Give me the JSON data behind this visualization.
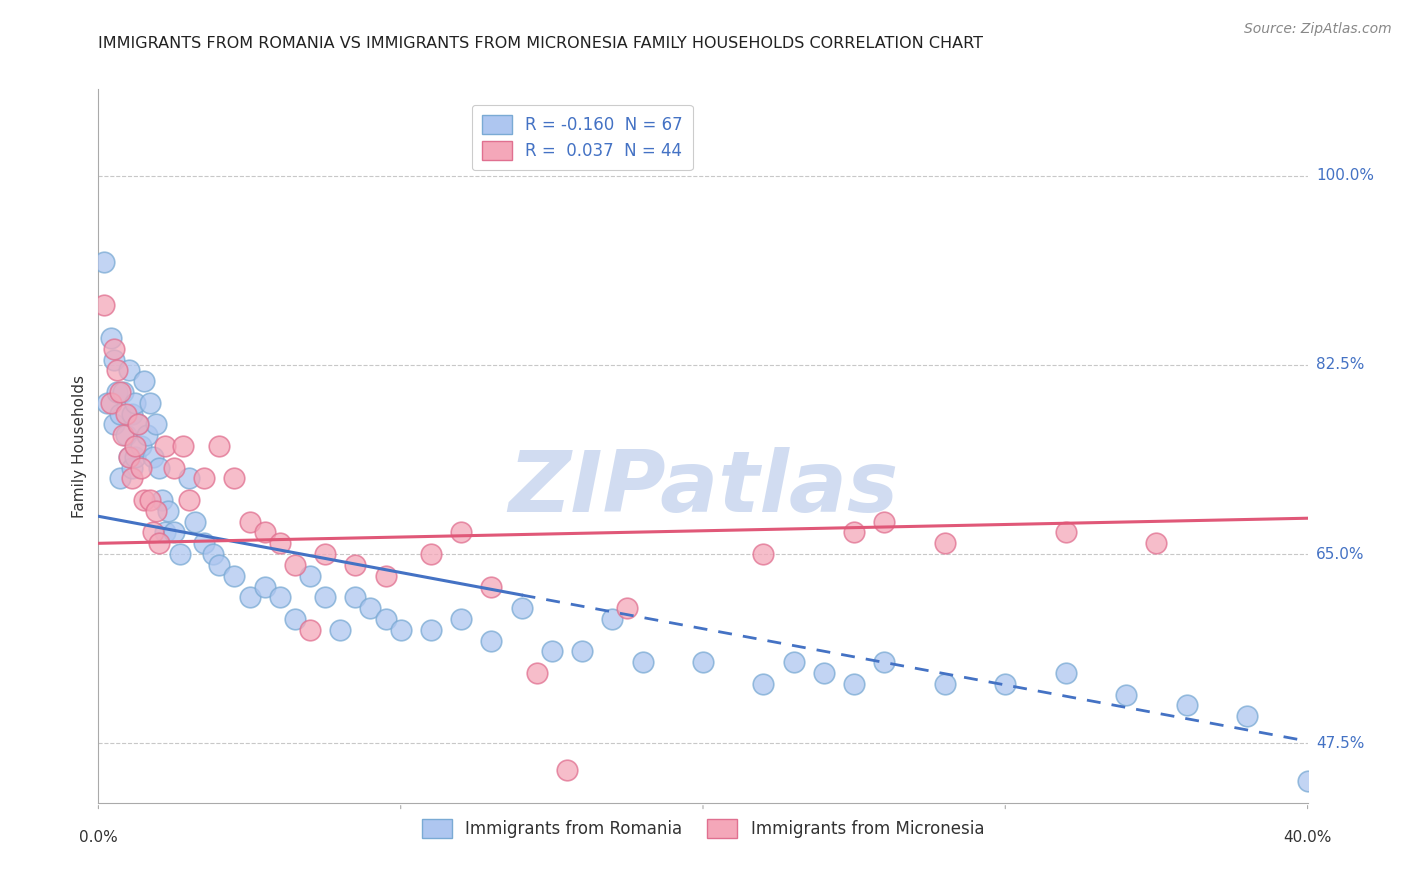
{
  "title": "IMMIGRANTS FROM ROMANIA VS IMMIGRANTS FROM MICRONESIA FAMILY HOUSEHOLDS CORRELATION CHART",
  "source": "Source: ZipAtlas.com",
  "ylabel": "Family Households",
  "xlim": [
    0.0,
    40.0
  ],
  "ylim": [
    42.0,
    108.0
  ],
  "yticks": [
    47.5,
    65.0,
    82.5,
    100.0
  ],
  "ytick_labels": [
    "47.5%",
    "65.0%",
    "82.5%",
    "100.0%"
  ],
  "xtick_positions": [
    0.0,
    10.0,
    20.0,
    30.0,
    40.0
  ],
  "xtick_labels": [
    "0.0%",
    "",
    "",
    "",
    "40.0%"
  ],
  "legend_entries": [
    {
      "label_r": "R = ",
      "r_val": "-0.160",
      "label_n": "  N = ",
      "n_val": "67",
      "color": "#aec6f0",
      "edge_color": "#7aaad4"
    },
    {
      "label_r": "R =  ",
      "r_val": "0.037",
      "label_n": "  N = ",
      "n_val": "44",
      "color": "#f4a7b9",
      "edge_color": "#e07090"
    }
  ],
  "bottom_legend": [
    {
      "label": "Immigrants from Romania",
      "color": "#aec6f0",
      "edge_color": "#7aaad4"
    },
    {
      "label": "Immigrants from Micronesia",
      "color": "#f4a7b9",
      "edge_color": "#e07090"
    }
  ],
  "series_romania": {
    "color": "#aec6f0",
    "edge_color": "#7aaad4",
    "x": [
      0.2,
      0.3,
      0.4,
      0.5,
      0.5,
      0.6,
      0.7,
      0.7,
      0.8,
      0.9,
      1.0,
      1.0,
      1.1,
      1.1,
      1.2,
      1.2,
      1.3,
      1.4,
      1.5,
      1.6,
      1.7,
      1.8,
      1.9,
      2.0,
      2.1,
      2.2,
      2.3,
      2.5,
      2.7,
      3.0,
      3.2,
      3.5,
      3.8,
      4.0,
      4.5,
      5.0,
      5.5,
      6.0,
      6.5,
      7.0,
      7.5,
      8.0,
      8.5,
      9.0,
      9.5,
      10.0,
      11.0,
      12.0,
      13.0,
      14.0,
      15.0,
      16.0,
      17.0,
      18.0,
      20.0,
      22.0,
      23.0,
      24.0,
      25.0,
      26.0,
      28.0,
      30.0,
      32.0,
      34.0,
      36.0,
      38.0,
      40.0
    ],
    "y": [
      92.0,
      79.0,
      85.0,
      83.0,
      77.0,
      80.0,
      78.0,
      72.0,
      80.0,
      76.0,
      82.0,
      74.0,
      78.0,
      73.0,
      79.0,
      74.0,
      77.0,
      75.0,
      81.0,
      76.0,
      79.0,
      74.0,
      77.0,
      73.0,
      70.0,
      67.0,
      69.0,
      67.0,
      65.0,
      72.0,
      68.0,
      66.0,
      65.0,
      64.0,
      63.0,
      61.0,
      62.0,
      61.0,
      59.0,
      63.0,
      61.0,
      58.0,
      61.0,
      60.0,
      59.0,
      58.0,
      58.0,
      59.0,
      57.0,
      60.0,
      56.0,
      56.0,
      59.0,
      55.0,
      55.0,
      53.0,
      55.0,
      54.0,
      53.0,
      55.0,
      53.0,
      53.0,
      54.0,
      52.0,
      51.0,
      50.0,
      44.0
    ]
  },
  "series_micronesia": {
    "color": "#f4a7b9",
    "edge_color": "#e07090",
    "x": [
      0.2,
      0.4,
      0.5,
      0.6,
      0.7,
      0.8,
      0.9,
      1.0,
      1.1,
      1.2,
      1.3,
      1.4,
      1.5,
      1.7,
      1.8,
      1.9,
      2.0,
      2.2,
      2.5,
      2.8,
      3.0,
      3.5,
      4.0,
      4.5,
      5.0,
      5.5,
      6.0,
      6.5,
      7.0,
      7.5,
      8.5,
      9.5,
      11.0,
      12.0,
      13.0,
      14.5,
      15.5,
      17.5,
      22.0,
      25.0,
      26.0,
      28.0,
      32.0,
      35.0
    ],
    "y": [
      88.0,
      79.0,
      84.0,
      82.0,
      80.0,
      76.0,
      78.0,
      74.0,
      72.0,
      75.0,
      77.0,
      73.0,
      70.0,
      70.0,
      67.0,
      69.0,
      66.0,
      75.0,
      73.0,
      75.0,
      70.0,
      72.0,
      75.0,
      72.0,
      68.0,
      67.0,
      66.0,
      64.0,
      58.0,
      65.0,
      64.0,
      63.0,
      65.0,
      67.0,
      62.0,
      54.0,
      45.0,
      60.0,
      65.0,
      67.0,
      68.0,
      66.0,
      67.0,
      66.0
    ]
  },
  "trendline_romania": {
    "x_solid_start": 0.0,
    "x_solid_end": 14.0,
    "x_dashed_end": 40.0,
    "color": "#4472c4",
    "slope": -0.52,
    "intercept": 68.5
  },
  "trendline_micronesia": {
    "x_start": 0.0,
    "x_end": 40.0,
    "color": "#e05878",
    "slope": 0.058,
    "intercept": 66.0
  },
  "watermark": "ZIPatlas",
  "watermark_color": "#ccd9f0",
  "background_color": "#ffffff",
  "grid_color": "#c8c8c8",
  "title_fontsize": 11.5,
  "axis_label_fontsize": 11,
  "tick_fontsize": 11,
  "legend_fontsize": 12,
  "source_fontsize": 10
}
